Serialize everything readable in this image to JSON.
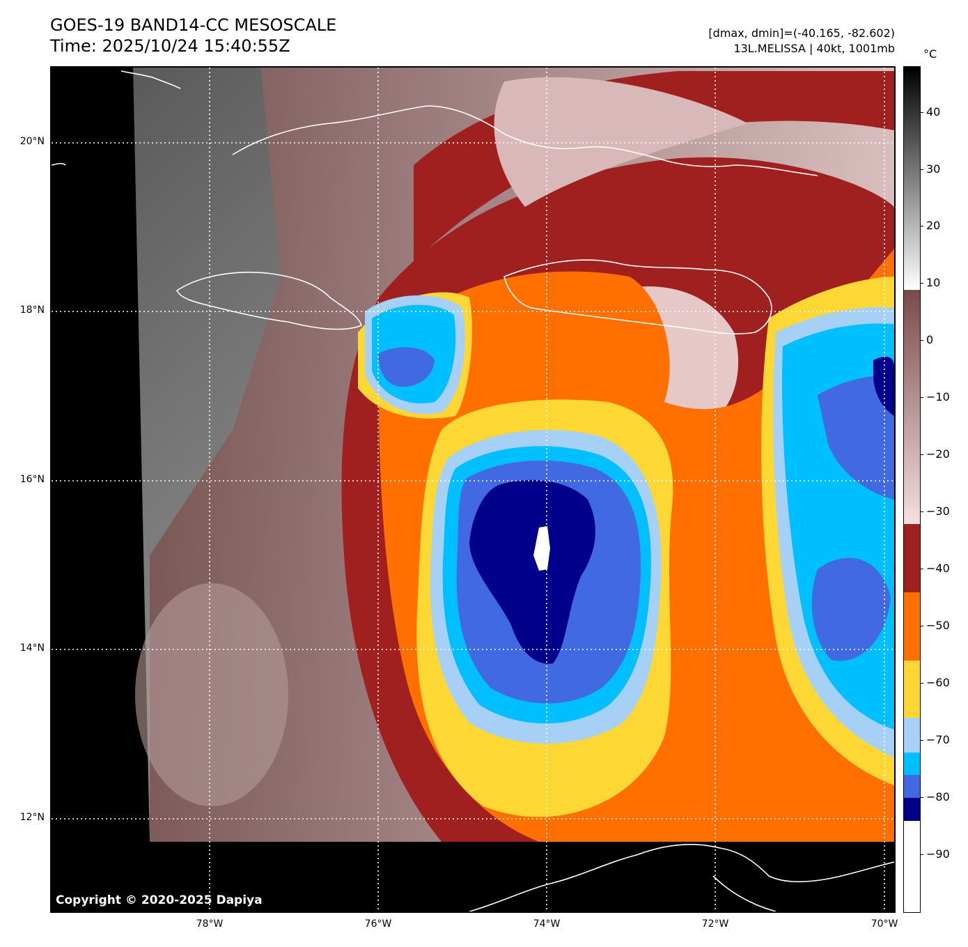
{
  "header": {
    "title_line1": "GOES-19 BAND14-CC MESOSCALE",
    "title_line2": "Time: 2025/10/24 15:40:55Z",
    "range_text": "[dmax, dmin]=(-40.165, -82.602)",
    "storm_text": "13L.MELISSA | 40kt, 1001mb"
  },
  "copyright": "Copyright © 2020-2025 Dapiya",
  "map": {
    "lon_range": [
      -80,
      -69.9
    ],
    "lat_range": [
      10.8,
      20.9
    ],
    "lat_labels": [
      {
        "value": 20,
        "label": "20°N"
      },
      {
        "value": 18,
        "label": "18°N"
      },
      {
        "value": 16,
        "label": "16°N"
      },
      {
        "value": 14,
        "label": "14°N"
      },
      {
        "value": 12,
        "label": "12°N"
      }
    ],
    "lon_labels": [
      {
        "value": -78,
        "label": "78°W"
      },
      {
        "value": -76,
        "label": "76°W"
      },
      {
        "value": -74,
        "label": "74°W"
      },
      {
        "value": -72,
        "label": "72°W"
      },
      {
        "value": -70,
        "label": "70°W"
      }
    ],
    "storm_center": {
      "lon": -73.9,
      "lat": 15.0
    },
    "colors": {
      "background": "#000000",
      "dark_red": "#a02020",
      "orange": "#ff7000",
      "yellow": "#fdd835",
      "light_blue": "#a6d0f5",
      "cyan": "#00bfff",
      "royal_blue": "#4169e1",
      "navy": "#00008b",
      "pink_warm": "#e8c4c4",
      "gray_land": "#707070"
    }
  },
  "colorbar": {
    "unit": "°C",
    "range": [
      -100,
      48
    ],
    "ticks": [
      {
        "value": 40,
        "label": "40"
      },
      {
        "value": 30,
        "label": "30"
      },
      {
        "value": 20,
        "label": "20"
      },
      {
        "value": 10,
        "label": "10"
      },
      {
        "value": 0,
        "label": "0"
      },
      {
        "value": -10,
        "label": "−10"
      },
      {
        "value": -20,
        "label": "−20"
      },
      {
        "value": -30,
        "label": "−30"
      },
      {
        "value": -40,
        "label": "−40"
      },
      {
        "value": -50,
        "label": "−50"
      },
      {
        "value": -60,
        "label": "−60"
      },
      {
        "value": -70,
        "label": "−70"
      },
      {
        "value": -80,
        "label": "−80"
      },
      {
        "value": -90,
        "label": "−90"
      }
    ],
    "bands": [
      {
        "from": -100,
        "to": -84,
        "color": "#ffffff"
      },
      {
        "from": -84,
        "to": -80,
        "color": "#00008b"
      },
      {
        "from": -80,
        "to": -76,
        "color": "#4169e1"
      },
      {
        "from": -76,
        "to": -72,
        "color": "#00bfff"
      },
      {
        "from": -72,
        "to": -66,
        "color": "#a6d0f5"
      },
      {
        "from": -66,
        "to": -56,
        "color": "#fdd835"
      },
      {
        "from": -56,
        "to": -44,
        "color": "#ff7000"
      },
      {
        "from": -44,
        "to": -32,
        "color": "#a02020"
      }
    ],
    "gradients": [
      {
        "from": -32,
        "to": 9,
        "top_color": "#7a4a4a",
        "bottom_color": "#f5e0e0"
      },
      {
        "from": 9,
        "to": 48,
        "top_color": "#000000",
        "bottom_color": "#ffffff"
      }
    ]
  }
}
